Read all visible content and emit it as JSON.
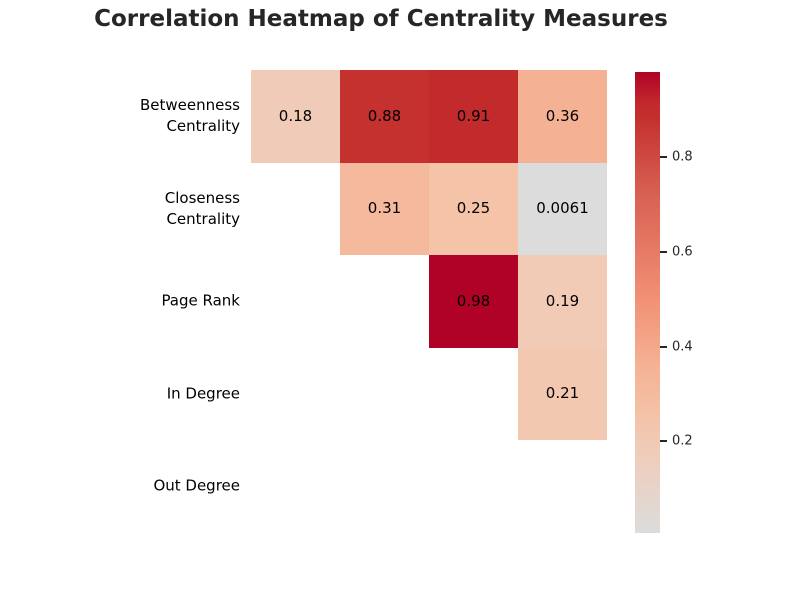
{
  "chart_data": {
    "type": "heatmap",
    "title": "Correlation Heatmap of Centrality Measures",
    "categories": [
      "Betweenness Centrality",
      "Closeness Centrality",
      "Page Rank",
      "In Degree",
      "Out Degree"
    ],
    "rows": [
      {
        "label": "Betweenness Centrality",
        "lines": [
          "Betweenness",
          "Centrality"
        ]
      },
      {
        "label": "Closeness Centrality",
        "lines": [
          "Closeness",
          "Centrality"
        ]
      },
      {
        "label": "Page Rank",
        "lines": [
          "Page Rank"
        ]
      },
      {
        "label": "In Degree",
        "lines": [
          "In Degree"
        ]
      },
      {
        "label": "Out Degree",
        "lines": [
          "Out Degree"
        ]
      }
    ],
    "mask": "lower triangle and diagonal hidden (upper-triangle correlations shown)",
    "cells": [
      {
        "row": 0,
        "col": 1,
        "value": 0.18,
        "label": "0.18"
      },
      {
        "row": 0,
        "col": 2,
        "value": 0.88,
        "label": "0.88"
      },
      {
        "row": 0,
        "col": 3,
        "value": 0.91,
        "label": "0.91"
      },
      {
        "row": 0,
        "col": 4,
        "value": 0.36,
        "label": "0.36"
      },
      {
        "row": 1,
        "col": 2,
        "value": 0.31,
        "label": "0.31"
      },
      {
        "row": 1,
        "col": 3,
        "value": 0.25,
        "label": "0.25"
      },
      {
        "row": 1,
        "col": 4,
        "value": 0.0061,
        "label": "0.0061"
      },
      {
        "row": 2,
        "col": 3,
        "value": 0.98,
        "label": "0.98"
      },
      {
        "row": 2,
        "col": 4,
        "value": 0.19,
        "label": "0.19"
      },
      {
        "row": 3,
        "col": 4,
        "value": 0.21,
        "label": "0.21"
      }
    ],
    "colorbar": {
      "vmin": 0.0061,
      "vmax": 0.98,
      "ticks": [
        {
          "value": 0.8,
          "label": "0.8"
        },
        {
          "value": 0.6,
          "label": "0.6"
        },
        {
          "value": 0.4,
          "label": "0.4"
        },
        {
          "value": 0.2,
          "label": "0.2"
        }
      ]
    },
    "colormap": {
      "stops": [
        {
          "pos": 0.0,
          "color": "#dcdcdc"
        },
        {
          "pos": 0.18,
          "color": "#f0ccb8"
        },
        {
          "pos": 0.25,
          "color": "#f4c3a8"
        },
        {
          "pos": 0.36,
          "color": "#f5b294"
        },
        {
          "pos": 0.5,
          "color": "#f29276"
        },
        {
          "pos": 0.75,
          "color": "#d65d50"
        },
        {
          "pos": 0.9,
          "color": "#c4302e"
        },
        {
          "pos": 0.93,
          "color": "#c22a2c"
        },
        {
          "pos": 1.0,
          "color": "#b00226"
        }
      ]
    },
    "colors": {
      "title_text": "#262626",
      "annotation_text": "#000000",
      "background": "#ffffff"
    }
  }
}
